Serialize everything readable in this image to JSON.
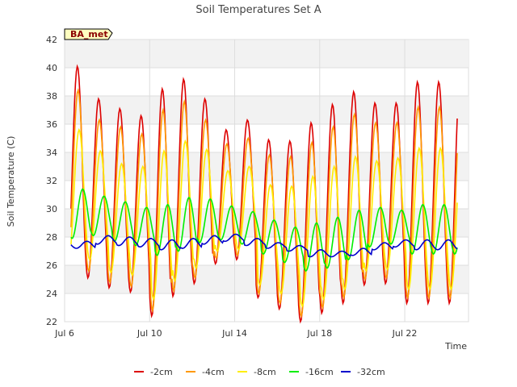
{
  "chart_data": {
    "type": "line",
    "title": "Soil Temperatures Set A",
    "xlabel": "Time",
    "ylabel": "Soil Temperature (C)",
    "ylim": [
      22,
      42
    ],
    "yticks": [
      22,
      24,
      26,
      28,
      30,
      32,
      34,
      36,
      38,
      40,
      42
    ],
    "xlim": [
      "2015-07-06",
      "2015-07-25"
    ],
    "xticks": [
      {
        "date": "2015-07-06",
        "label": "Jul 6"
      },
      {
        "date": "2015-07-10",
        "label": "Jul 10"
      },
      {
        "date": "2015-07-14",
        "label": "Jul 14"
      },
      {
        "date": "2015-07-18",
        "label": "Jul 18"
      },
      {
        "date": "2015-07-22",
        "label": "Jul 22"
      }
    ],
    "badge": "BA_met",
    "grid": true,
    "legend_position": "bottom",
    "series": [
      {
        "name": "-2cm",
        "color": "#dd0000",
        "daily_min": [
          24.7,
          25.1,
          24.4,
          24.1,
          22.4,
          23.8,
          24.7,
          26.1,
          26.4,
          23.7,
          22.9,
          22.0,
          22.6,
          23.3,
          24.6,
          24.7,
          23.3
        ],
        "daily_max": [
          40.1,
          37.8,
          37.1,
          36.6,
          38.5,
          39.2,
          37.8,
          35.6,
          36.3,
          34.9,
          34.8,
          36.1,
          37.4,
          38.3,
          37.5,
          37.5,
          39.0
        ]
      },
      {
        "name": "-4cm",
        "color": "#ff9900",
        "daily_min": [
          25.3,
          25.6,
          24.8,
          24.5,
          22.8,
          24.2,
          25.1,
          26.5,
          26.7,
          24.0,
          23.3,
          22.4,
          23.0,
          23.7,
          25.0,
          25.1,
          23.7
        ],
        "daily_max": [
          38.4,
          36.3,
          35.8,
          35.3,
          37.0,
          37.6,
          36.3,
          34.6,
          35.0,
          33.8,
          33.7,
          34.7,
          35.8,
          36.7,
          36.1,
          36.1,
          37.2
        ]
      },
      {
        "name": "-8cm",
        "color": "#ffee00",
        "daily_min": [
          26.2,
          26.4,
          25.5,
          25.3,
          23.6,
          24.9,
          25.8,
          27.0,
          27.1,
          24.6,
          24.0,
          23.1,
          23.6,
          24.3,
          25.6,
          25.7,
          24.3
        ],
        "daily_max": [
          35.6,
          34.1,
          33.2,
          33.0,
          34.1,
          34.8,
          34.2,
          32.7,
          33.0,
          31.7,
          31.6,
          32.3,
          33.0,
          33.7,
          33.4,
          33.6,
          34.3
        ]
      },
      {
        "name": "-16cm",
        "color": "#00ee00",
        "daily_min": [
          27.9,
          28.1,
          27.7,
          27.4,
          26.7,
          27.0,
          27.6,
          27.8,
          27.5,
          26.8,
          26.2,
          25.6,
          25.8,
          26.4,
          27.3,
          27.5,
          26.8
        ],
        "daily_max": [
          31.4,
          30.9,
          30.5,
          30.1,
          30.3,
          30.8,
          30.7,
          30.2,
          29.8,
          29.2,
          28.7,
          29.0,
          29.4,
          29.9,
          30.1,
          29.9,
          30.3
        ]
      },
      {
        "name": "-32cm",
        "color": "#0000cc",
        "daily_min": [
          27.2,
          27.5,
          27.4,
          27.3,
          27.1,
          27.2,
          27.5,
          27.7,
          27.4,
          27.2,
          27.0,
          26.6,
          26.6,
          26.7,
          27.1,
          27.3,
          27.1
        ],
        "daily_max": [
          27.7,
          28.1,
          28.0,
          27.9,
          27.8,
          27.9,
          28.1,
          28.2,
          27.9,
          27.6,
          27.4,
          27.1,
          27.0,
          27.2,
          27.6,
          27.8,
          27.8
        ]
      }
    ]
  }
}
